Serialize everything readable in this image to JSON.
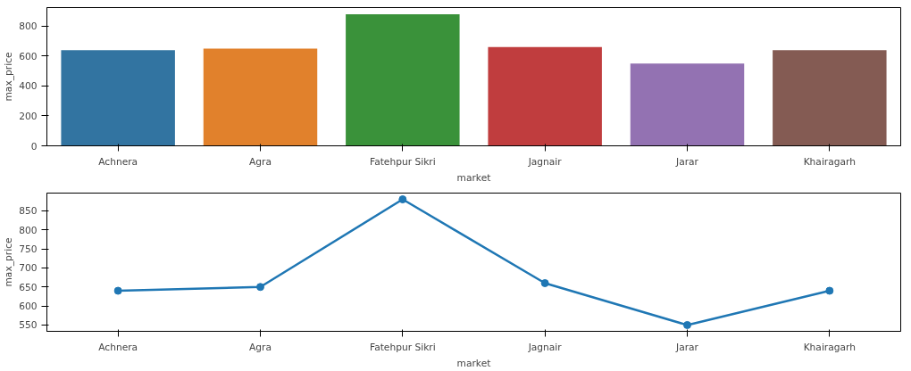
{
  "chart_data": [
    {
      "type": "bar",
      "categories": [
        "Achnera",
        "Agra",
        "Fatehpur Sikri",
        "Jagnair",
        "Jarar",
        "Khairagarh"
      ],
      "values": [
        640,
        650,
        880,
        660,
        550,
        640
      ],
      "colors": [
        "#3274a1",
        "#e1812c",
        "#3a923a",
        "#c03d3e",
        "#9372b2",
        "#845b53"
      ],
      "xlabel": "market",
      "ylabel": "max_price",
      "ylim": [
        0,
        924
      ],
      "yticks": [
        0,
        200,
        400,
        600,
        800
      ],
      "grid": false
    },
    {
      "type": "line",
      "categories": [
        "Achnera",
        "Agra",
        "Fatehpur Sikri",
        "Jagnair",
        "Jarar",
        "Khairagarh"
      ],
      "values": [
        640,
        650,
        880,
        660,
        550,
        640
      ],
      "color": "#1f77b4",
      "marker": "circle",
      "xlabel": "market",
      "ylabel": "max_price",
      "ylim": [
        533.5,
        896.5
      ],
      "yticks": [
        550,
        600,
        650,
        700,
        750,
        800,
        850
      ],
      "grid": false
    }
  ]
}
